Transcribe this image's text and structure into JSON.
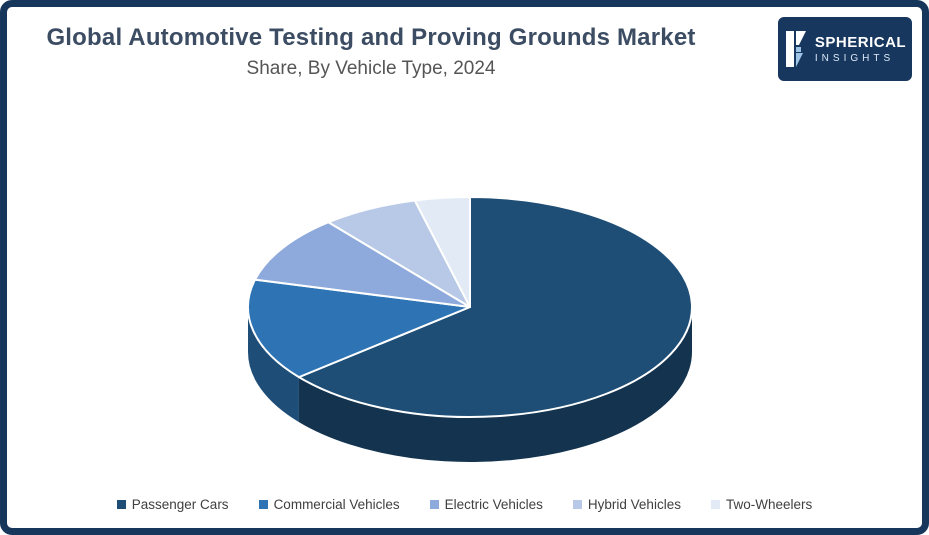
{
  "header": {
    "title": "Global Automotive Testing and Proving Grounds Market",
    "subtitle": "Share, By Vehicle Type, 2024"
  },
  "logo": {
    "line1": "SPHERICAL",
    "line2": "INSIGHTS",
    "background": "#17375e"
  },
  "frame": {
    "border_color": "#16365c",
    "background": "#ffffff"
  },
  "chart_data": {
    "type": "pie",
    "title": "Global Automotive Testing and Proving Grounds Market Share, By Vehicle Type, 2024",
    "categories": [
      "Passenger Cars",
      "Commercial Vehicles",
      "Electric Vehicles",
      "Hybrid Vehicles",
      "Two-Wheelers"
    ],
    "values": [
      64,
      15,
      10,
      7,
      4
    ],
    "unit": "percent",
    "colors": [
      "#1E4E76",
      "#2E74B5",
      "#8EA9DB",
      "#B7C9E6",
      "#E2EAF5"
    ],
    "start_angle_deg": -90,
    "direction": "clockwise",
    "three_d": true,
    "legend_position": "bottom",
    "data_labels": false
  }
}
